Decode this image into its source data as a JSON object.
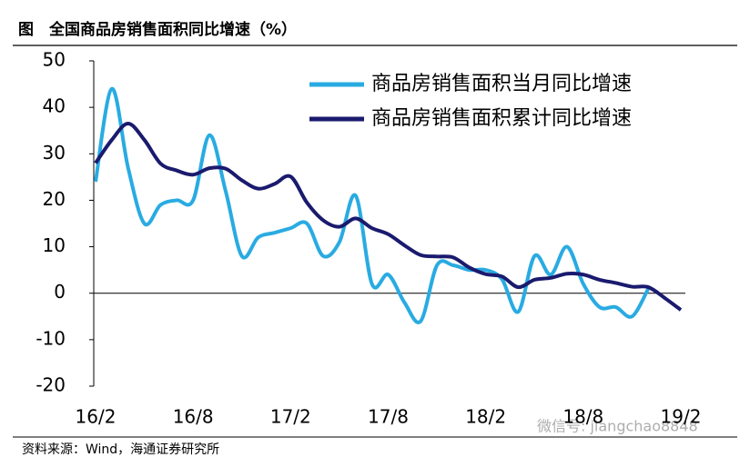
{
  "chart_data": {
    "type": "line",
    "title": "图　全国商品房销售面积同比增速（%）",
    "source": "资料来源：Wind，海通证券研究所",
    "watermark": "微信号: jiangchao8848",
    "categories": [
      "16/2",
      null,
      null,
      null,
      null,
      null,
      "16/8",
      null,
      null,
      null,
      null,
      null,
      "17/2",
      null,
      null,
      null,
      null,
      null,
      "17/8",
      null,
      null,
      null,
      null,
      null,
      "18/2",
      null,
      null,
      null,
      null,
      null,
      "18/8",
      null,
      null,
      null,
      null,
      null,
      "19/2"
    ],
    "series": [
      {
        "name": "商品房销售面积当月同比增速",
        "color": "#29abe2",
        "values": [
          24,
          44,
          27,
          15,
          19,
          20,
          20,
          34,
          22,
          8,
          12,
          13,
          14,
          15,
          8,
          11,
          21,
          2,
          4,
          -2,
          -6,
          6,
          6,
          5,
          5,
          3,
          -4,
          8,
          4,
          10,
          2,
          -3,
          -3,
          -5,
          1,
          null,
          null
        ]
      },
      {
        "name": "商品房销售面积累计同比增速",
        "color": "#1a1a6e",
        "values": [
          28,
          33,
          36.5,
          33,
          27.9,
          26.4,
          25.5,
          26.9,
          26.8,
          24.3,
          22.5,
          23.5,
          25.1,
          19.5,
          15.7,
          14.3,
          16.1,
          14,
          12.7,
          10.3,
          8.2,
          7.9,
          7.7,
          5.5,
          4.1,
          3.6,
          1.3,
          2.9,
          3.3,
          4.2,
          4.0,
          2.9,
          2.2,
          1.4,
          1.3,
          -1,
          -3.6
        ]
      }
    ],
    "ylim": [
      -20,
      50
    ],
    "yticks": [
      -20,
      -10,
      0,
      10,
      20,
      30,
      40,
      50
    ],
    "legend": "upper right"
  }
}
